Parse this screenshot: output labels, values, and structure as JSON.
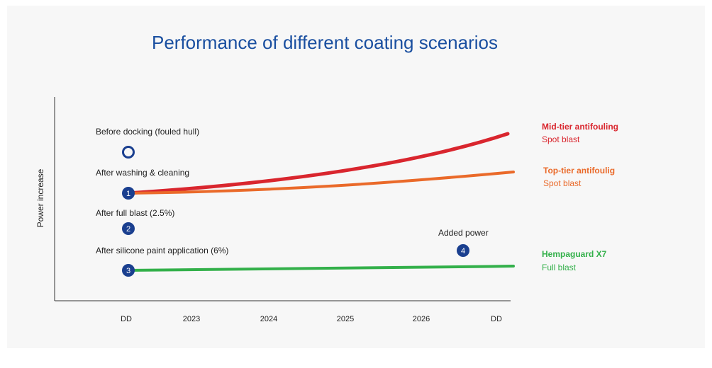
{
  "title": "Performance of different coating scenarios",
  "y_axis_label": "Power increase",
  "x_labels": [
    "DD",
    "2023",
    "2024",
    "2025",
    "2026",
    "DD"
  ],
  "annotations": [
    "Before docking (fouled hull)",
    "After washing & cleaning",
    "After full blast (2.5%)",
    "After silicone paint application (6%)",
    "Added power"
  ],
  "markers": [
    "1",
    "2",
    "3",
    "4"
  ],
  "legend": [
    {
      "name": "Mid-tier antifouling",
      "detail": "Spot blast"
    },
    {
      "name": "Top-tier antifoulig",
      "detail": "Spot blast"
    },
    {
      "name": "Hempaguard X7",
      "detail": "Full blast"
    }
  ]
}
